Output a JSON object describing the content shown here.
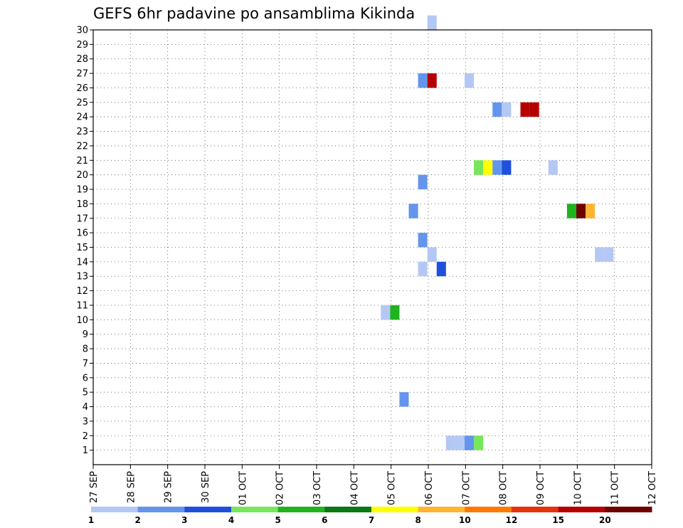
{
  "chart_data": {
    "type": "heatmap",
    "title": "GEFS 6hr padavine po ansamblima Kikinda",
    "xlabel": "",
    "ylabel": "",
    "x_tick_labels": [
      "27 SEP",
      "28 SEP",
      "29 SEP",
      "30 SEP",
      "01 OCT",
      "02 OCT",
      "03 OCT",
      "04 OCT",
      "05 OCT",
      "06 OCT",
      "07 OCT",
      "08 OCT",
      "09 OCT",
      "10 OCT",
      "11 OCT",
      "12 OCT"
    ],
    "xlim_days": [
      0,
      15
    ],
    "ylim": [
      0,
      30
    ],
    "y_ticks": [
      1,
      2,
      3,
      4,
      5,
      6,
      7,
      8,
      9,
      10,
      11,
      12,
      13,
      14,
      15,
      16,
      17,
      18,
      19,
      20,
      21,
      22,
      23,
      24,
      25,
      26,
      27,
      28,
      29,
      30
    ],
    "grid": true,
    "colorbar": {
      "levels": [
        "1",
        "2",
        "3",
        "4",
        "5",
        "6",
        "7",
        "8",
        "10",
        "12",
        "15",
        "20"
      ],
      "colors": [
        "#b4c8f5",
        "#6495ed",
        "#1e50dc",
        "#78e65a",
        "#1eb41e",
        "#0a7814",
        "#ffff00",
        "#ffb432",
        "#ff7800",
        "#e6320a",
        "#b40000",
        "#6e0000"
      ]
    },
    "cells": [
      {
        "day": 7.85,
        "member": 10.5,
        "color": "#b4c8f5"
      },
      {
        "day": 8.1,
        "member": 10.5,
        "color": "#1eb41e"
      },
      {
        "day": 8.35,
        "member": 4.5,
        "color": "#6495ed"
      },
      {
        "day": 8.6,
        "member": 17.5,
        "color": "#6495ed"
      },
      {
        "day": 8.85,
        "member": 13.5,
        "color": "#b4c8f5"
      },
      {
        "day": 8.85,
        "member": 15.5,
        "color": "#6495ed"
      },
      {
        "day": 8.85,
        "member": 19.5,
        "color": "#6495ed"
      },
      {
        "day": 8.85,
        "member": 26.5,
        "color": "#6495ed"
      },
      {
        "day": 9.1,
        "member": 14.5,
        "color": "#b4c8f5"
      },
      {
        "day": 9.1,
        "member": 26.5,
        "color": "#b40000"
      },
      {
        "day": 9.1,
        "member": 30.5,
        "color": "#b4c8f5"
      },
      {
        "day": 9.35,
        "member": 13.5,
        "color": "#1e50dc"
      },
      {
        "day": 9.6,
        "member": 1.5,
        "color": "#b4c8f5"
      },
      {
        "day": 9.85,
        "member": 1.5,
        "color": "#b4c8f5"
      },
      {
        "day": 10.1,
        "member": 26.5,
        "color": "#b4c8f5"
      },
      {
        "day": 10.1,
        "member": 1.5,
        "color": "#6495ed"
      },
      {
        "day": 10.35,
        "member": 1.5,
        "color": "#78e65a"
      },
      {
        "day": 10.35,
        "member": 20.5,
        "color": "#78e65a"
      },
      {
        "day": 10.6,
        "member": 20.5,
        "color": "#ffff00"
      },
      {
        "day": 10.85,
        "member": 20.5,
        "color": "#6495ed"
      },
      {
        "day": 10.85,
        "member": 24.5,
        "color": "#6495ed"
      },
      {
        "day": 11.1,
        "member": 20.5,
        "color": "#1e50dc"
      },
      {
        "day": 11.1,
        "member": 24.5,
        "color": "#b4c8f5"
      },
      {
        "day": 11.6,
        "member": 24.5,
        "color": "#b40000"
      },
      {
        "day": 11.85,
        "member": 24.5,
        "color": "#b40000"
      },
      {
        "day": 12.35,
        "member": 20.5,
        "color": "#b4c8f5"
      },
      {
        "day": 12.85,
        "member": 17.5,
        "color": "#1eb41e"
      },
      {
        "day": 13.1,
        "member": 17.5,
        "color": "#6e0000"
      },
      {
        "day": 13.35,
        "member": 17.5,
        "color": "#ffb432"
      },
      {
        "day": 13.6,
        "member": 14.5,
        "color": "#b4c8f5"
      },
      {
        "day": 13.85,
        "member": 14.5,
        "color": "#b4c8f5"
      }
    ]
  }
}
